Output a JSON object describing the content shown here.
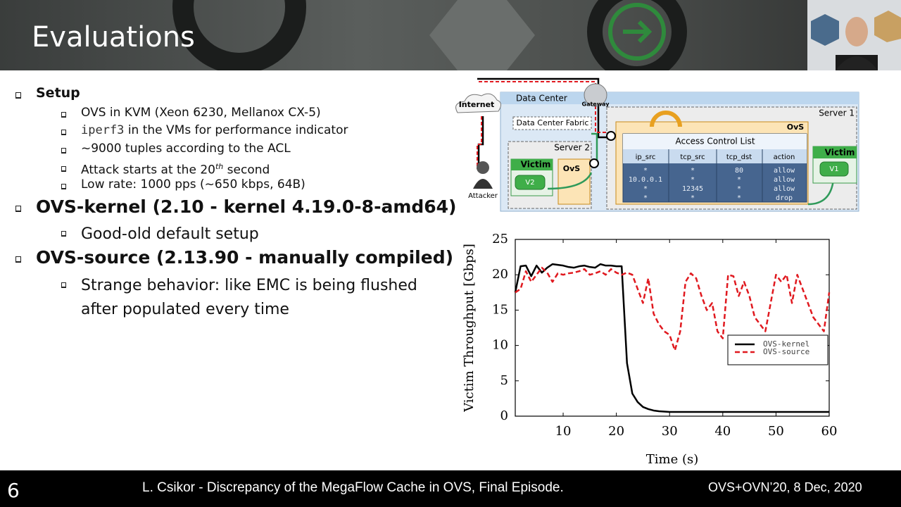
{
  "slide": {
    "title": "Evaluations",
    "bullets": [
      {
        "text": "Setup",
        "subs": [
          {
            "parts": [
              "OVS in KVM (Xeon 6230, Mellanox CX-5)"
            ]
          },
          {
            "parts": [
              "iperf3",
              " in the VMs for performance indicator"
            ]
          },
          {
            "parts": [
              "~9000 tuples according to the ACL"
            ]
          },
          {
            "parts": [
              "Attack starts at the 20",
              "th",
              " second"
            ]
          },
          {
            "parts": [
              "Low rate: 1000 pps (~650 kbps, 64B)"
            ]
          }
        ]
      },
      {
        "text": "OVS-kernel (2.10 - kernel 4.19.0-8-amd64)",
        "subs": [
          {
            "parts": [
              "Good-old default setup"
            ]
          }
        ]
      },
      {
        "text": "OVS-source (2.13.90 - manually compiled)",
        "subs": [
          {
            "parts": [
              "Strange behavior: like EMC is being flushed after populated every time"
            ]
          }
        ]
      }
    ]
  },
  "diagram": {
    "internet": "Internet",
    "data_center": "Data Center",
    "gateway": "Gateway",
    "fabric": "Data Center Fabric",
    "server1": "Server 1",
    "server2": "Server 2",
    "ovs1": "OvS",
    "ovs2": "OvS",
    "victim2": "Victim",
    "vm2": "V2",
    "victim1": "Victim",
    "vm1": "V1",
    "attacker": "Attacker",
    "acl": {
      "title": "Access Control List",
      "headers": [
        "ip_src",
        "tcp_src",
        "tcp_dst",
        "action"
      ],
      "rows": [
        [
          "*",
          "*",
          "80",
          "allow"
        ],
        [
          "10.0.0.1",
          "*",
          "*",
          "allow"
        ],
        [
          "*",
          "12345",
          "*",
          "allow"
        ],
        [
          "*",
          "*",
          "*",
          "drop"
        ]
      ]
    }
  },
  "chart_data": {
    "type": "line",
    "xlabel": "Time (s)",
    "ylabel": "Victim Throughput [Gbps]",
    "x": [
      1,
      2,
      3,
      4,
      5,
      6,
      7,
      8,
      9,
      10,
      11,
      12,
      13,
      14,
      15,
      16,
      17,
      18,
      19,
      20,
      21,
      22,
      23,
      24,
      25,
      26,
      27,
      28,
      29,
      30,
      31,
      32,
      33,
      34,
      35,
      36,
      37,
      38,
      39,
      40,
      41,
      42,
      43,
      44,
      45,
      46,
      47,
      48,
      49,
      50,
      51,
      52,
      53,
      54,
      55,
      56,
      57,
      58,
      59,
      60
    ],
    "xlim": [
      1,
      60
    ],
    "xticks": [
      10,
      20,
      30,
      40,
      50,
      60
    ],
    "ylim": [
      0,
      25
    ],
    "yticks": [
      0,
      5,
      10,
      15,
      20,
      25
    ],
    "legend": "right",
    "series": [
      {
        "name": "OVS-kernel",
        "color": "#000000",
        "dash": false,
        "values": [
          17.5,
          21.2,
          21.3,
          19.8,
          21.3,
          20.3,
          21,
          21.5,
          21.4,
          21.3,
          21.1,
          21,
          21.2,
          21.3,
          21.1,
          21,
          21.5,
          21.3,
          21.3,
          21.2,
          21.2,
          7.5,
          3.2,
          2,
          1.3,
          1,
          0.8,
          0.7,
          0.65,
          0.6,
          0.6,
          0.6,
          0.6,
          0.6,
          0.6,
          0.6,
          0.6,
          0.6,
          0.6,
          0.6,
          0.6,
          0.6,
          0.6,
          0.6,
          0.6,
          0.6,
          0.6,
          0.6,
          0.6,
          0.6,
          0.6,
          0.6,
          0.6,
          0.6,
          0.6,
          0.6,
          0.6,
          0.6,
          0.6,
          0.6
        ]
      },
      {
        "name": "OVS-source",
        "color": "#e0191f",
        "dash": true,
        "values": [
          17.5,
          18,
          20.5,
          19,
          20,
          21,
          20.3,
          19,
          20.2,
          20,
          20.2,
          20.3,
          20.5,
          20.8,
          20,
          20.2,
          20.5,
          20,
          20.8,
          20.3,
          20,
          20.3,
          20,
          18,
          16,
          19.5,
          14.5,
          13,
          12,
          11.5,
          9.3,
          12,
          19,
          20.2,
          19.5,
          17,
          15,
          16,
          12,
          11,
          20,
          19.8,
          17,
          19,
          17,
          14,
          13,
          12,
          16,
          20,
          19,
          20,
          16,
          20,
          18,
          16,
          14,
          13,
          12,
          17.5
        ]
      }
    ]
  },
  "footer": {
    "page": "6",
    "center": "L. Csikor - Discrepancy of the MegaFlow Cache in OVS, Final Episode.",
    "right": "OVS+OVN’20, 8 Dec, 2020"
  }
}
